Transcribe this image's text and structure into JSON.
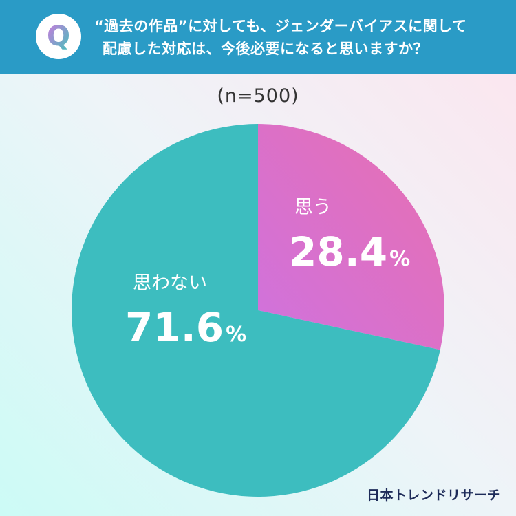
{
  "header": {
    "badge_letter": "Q",
    "question_line1": "“過去の作品”に対しても、ジェンダーバイアスに関して",
    "question_line2": "配慮した対応は、今後必要になると思いますか？"
  },
  "sample_size": "(n=500)",
  "chart_data": {
    "type": "pie",
    "slices": [
      {
        "label": "思う",
        "value": 28.4,
        "display": "28.4",
        "unit": "%",
        "color_start": "#cf72de",
        "color_end": "#e86fb0"
      },
      {
        "label": "思わない",
        "value": 71.6,
        "display": "71.6",
        "unit": "%",
        "color": "#3dbdbf"
      }
    ]
  },
  "footer": {
    "logo": "日本トレンドリサーチ"
  }
}
